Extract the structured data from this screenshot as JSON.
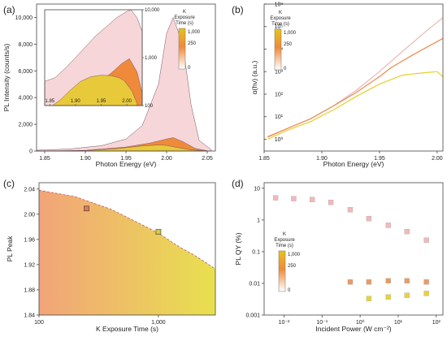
{
  "chart_data": [
    {
      "panel": "(a)",
      "type": "area",
      "xlabel": "Photon Energy (eV)",
      "ylabel": "PL Intensity (counts/s)",
      "xlim": [
        1.84,
        2.06
      ],
      "ylim": [
        0,
        11000
      ],
      "xticks": [
        "1.85",
        "1.90",
        "1.95",
        "2.00",
        "2.05"
      ],
      "yticks": [
        "0",
        "2,000",
        "4,000",
        "6,000",
        "8,000",
        "10,000"
      ],
      "series": [
        {
          "color": "#f6d6d8",
          "x": [
            1.84,
            1.88,
            1.92,
            1.95,
            1.97,
            1.99,
            2.0,
            2.008,
            2.02,
            2.03,
            2.04,
            2.055
          ],
          "values": [
            60,
            150,
            400,
            900,
            1900,
            5000,
            8800,
            10000,
            8000,
            3500,
            800,
            100
          ]
        },
        {
          "color": "#ef8a3a",
          "x": [
            1.84,
            1.9,
            1.95,
            1.98,
            2.0,
            2.008,
            2.02,
            2.035,
            2.05
          ],
          "values": [
            0,
            50,
            300,
            600,
            900,
            1000,
            700,
            200,
            20
          ]
        },
        {
          "color": "#e8c93a",
          "x": [
            1.84,
            1.9,
            1.94,
            1.97,
            1.99,
            2.0,
            2.01,
            2.03,
            2.05
          ],
          "values": [
            0,
            30,
            180,
            380,
            450,
            420,
            300,
            80,
            10
          ]
        }
      ],
      "inset": {
        "yscale": "log",
        "ylim": [
          100,
          10000
        ],
        "xlim": [
          1.84,
          2.03
        ],
        "xticks": [
          "1.85",
          "1.90",
          "1.95",
          "2.00"
        ],
        "yticks": [
          "100",
          "1,000",
          "10,000"
        ],
        "series": [
          {
            "color": "#f6d6d8",
            "x": [
              1.84,
              1.86,
              1.88,
              1.9,
              1.92,
              1.94,
              1.96,
              1.98,
              2.0,
              2.008,
              2.02,
              2.03
            ],
            "values": [
              320,
              380,
              600,
              1000,
              1700,
              2900,
              4400,
              6800,
              9200,
              10000,
              6800,
              3500
            ]
          },
          {
            "color": "#ef8a3a",
            "x": [
              1.89,
              1.91,
              1.93,
              1.95,
              1.97,
              1.99,
              2.005,
              2.02,
              2.03
            ],
            "values": [
              100,
              140,
              220,
              330,
              480,
              750,
              950,
              500,
              180
            ]
          },
          {
            "color": "#e8c93a",
            "x": [
              1.855,
              1.87,
              1.89,
              1.91,
              1.93,
              1.95,
              1.97,
              1.985,
              1.995,
              2.01,
              2.02
            ],
            "values": [
              100,
              130,
              210,
              320,
              400,
              430,
              420,
              380,
              330,
              200,
              110
            ]
          }
        ]
      },
      "legend": {
        "title": [
          "K",
          "Exposure",
          "Time (s)"
        ],
        "ticks": [
          "1,000",
          "250",
          "0"
        ]
      }
    },
    {
      "panel": "(b)",
      "type": "line",
      "xlabel": "Photon Energy (eV)",
      "ylabel": "α(hν) (a.u.)",
      "yscale": "log",
      "xlim": [
        1.85,
        2.005
      ],
      "ylim": [
        0.3,
        1000000
      ],
      "xticks": [
        "1.85",
        "1.90",
        "1.95",
        "2.00"
      ],
      "yticks": [
        "10⁰",
        "10¹",
        "10²",
        "10³",
        "10⁴",
        "10⁵",
        "10⁶"
      ],
      "series": [
        {
          "color": "#eab7b4",
          "x": [
            1.853,
            1.87,
            1.89,
            1.91,
            1.93,
            1.95,
            1.97,
            1.99,
            2.005
          ],
          "values": [
            1.2,
            3,
            8,
            30,
            150,
            1000,
            8000,
            60000,
            250000
          ]
        },
        {
          "color": "#ee8a50",
          "x": [
            1.853,
            1.87,
            1.89,
            1.91,
            1.93,
            1.95,
            1.96,
            1.98,
            2.005
          ],
          "values": [
            1.3,
            3,
            8,
            30,
            120,
            600,
            1500,
            6000,
            30000
          ]
        },
        {
          "color": "#e4cf2c",
          "x": [
            1.853,
            1.87,
            1.89,
            1.91,
            1.93,
            1.95,
            1.97,
            1.99,
            2.0,
            2.005
          ],
          "values": [
            1,
            2.5,
            6,
            20,
            80,
            280,
            700,
            900,
            1000,
            600
          ]
        }
      ],
      "legend": {
        "title": [
          "K",
          "Exposure",
          "Time (s)"
        ],
        "ticks": [
          "1,000",
          "250",
          "0"
        ]
      }
    },
    {
      "panel": "(c)",
      "type": "scatter",
      "xlabel": "K Exposure Time (s)",
      "ylabel": "PL Peak",
      "xscale": "log",
      "xlim": [
        100,
        3000
      ],
      "ylim": [
        1.84,
        2.05
      ],
      "xticks": [
        "100",
        "1,000"
      ],
      "yticks": [
        "1.84",
        "1.88",
        "1.92",
        "1.96",
        "2.00",
        "2.04"
      ],
      "points": [
        {
          "x": 250,
          "y": 2.009,
          "color": "#e0785a"
        },
        {
          "x": 1000,
          "y": 1.972,
          "color": "#d9c748"
        }
      ],
      "boundary": {
        "x": [
          100,
          200,
          400,
          700,
          1000,
          1500,
          2000,
          3000
        ],
        "y": [
          2.038,
          2.028,
          2.008,
          1.985,
          1.97,
          1.948,
          1.935,
          1.913
        ]
      }
    },
    {
      "panel": "(d)",
      "type": "scatter",
      "xlabel": "Incident Power (W cm⁻²)",
      "ylabel": "PL QY (%)",
      "xscale": "log",
      "yscale": "log",
      "xlim": [
        0.003,
        150
      ],
      "ylim": [
        0.001,
        15
      ],
      "xticks": [
        "10⁻²",
        "10⁻¹",
        "10⁰",
        "10¹",
        "10²"
      ],
      "yticks": [
        "0.001",
        "0.01",
        "0.1",
        "1",
        "10"
      ],
      "series": [
        {
          "color": "#f2b8bd",
          "x": [
            0.006,
            0.018,
            0.055,
            0.17,
            0.55,
            1.7,
            5.5,
            17,
            55
          ],
          "values": [
            5,
            4.7,
            4.4,
            3.6,
            2.1,
            1.1,
            0.68,
            0.43,
            0.23
          ]
        },
        {
          "color": "#ec9a62",
          "x": [
            0.55,
            1.7,
            5.5,
            17,
            55
          ],
          "values": [
            0.011,
            0.011,
            0.012,
            0.012,
            0.011
          ]
        },
        {
          "color": "#e8d33a",
          "x": [
            1.7,
            5.5,
            17,
            55
          ],
          "values": [
            0.0033,
            0.0037,
            0.0042,
            0.0048
          ]
        }
      ],
      "legend": {
        "title": [
          "K",
          "Exposure",
          "Time (s)"
        ],
        "ticks": [
          "1,000",
          "250",
          "0"
        ]
      }
    }
  ]
}
